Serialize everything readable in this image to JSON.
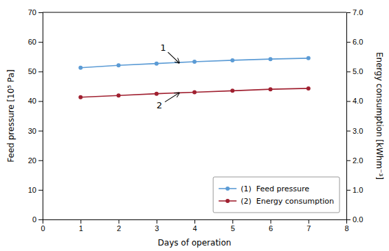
{
  "chart_data": {
    "type": "line",
    "xlabel": "Days of operation",
    "ylabel": "Feed pressure [10⁵ Pa]",
    "y2label": "Energy consumption [kWhm⁻³]",
    "x": [
      1,
      2,
      3,
      4,
      5,
      6,
      7
    ],
    "series": [
      {
        "name": "(1)  Feed pressure",
        "color": "#5b9bd5",
        "marker": "o",
        "values": [
          51.3,
          52.1,
          52.7,
          53.3,
          53.8,
          54.2,
          54.5
        ]
      },
      {
        "name": "(2)  Energy consumption",
        "color": "#a02030",
        "marker": "o",
        "axis": "y2",
        "values": [
          4.13,
          4.19,
          4.25,
          4.3,
          4.35,
          4.4,
          4.43
        ]
      }
    ],
    "xlim": [
      0,
      8
    ],
    "xticks": [
      0,
      1,
      2,
      3,
      4,
      5,
      6,
      7,
      8
    ],
    "ylim": [
      0,
      70
    ],
    "yticks": [
      0,
      10,
      20,
      30,
      40,
      50,
      60,
      70
    ],
    "y2lim": [
      0.0,
      7.0
    ],
    "y2ticks": [
      {
        "value": 0.0,
        "label": "0.0"
      },
      {
        "value": 1.0,
        "label": "1.0"
      },
      {
        "value": 2.0,
        "label": "2.0"
      },
      {
        "value": 3.0,
        "label": "3.0"
      },
      {
        "value": 4.0,
        "label": "4.0"
      },
      {
        "value": 5.0,
        "label": "5.0"
      },
      {
        "value": 6.0,
        "label": "6.0"
      },
      {
        "value": 7.0,
        "label": "7.0"
      }
    ],
    "annotations": [
      {
        "text": "1",
        "xy": [
          3.6,
          52.85
        ],
        "xytext": [
          3.1,
          57.0
        ]
      },
      {
        "text": "2",
        "xy": [
          3.6,
          42.8
        ],
        "xytext": [
          3.0,
          37.5
        ]
      }
    ],
    "legend": "lower right",
    "grid": false
  }
}
